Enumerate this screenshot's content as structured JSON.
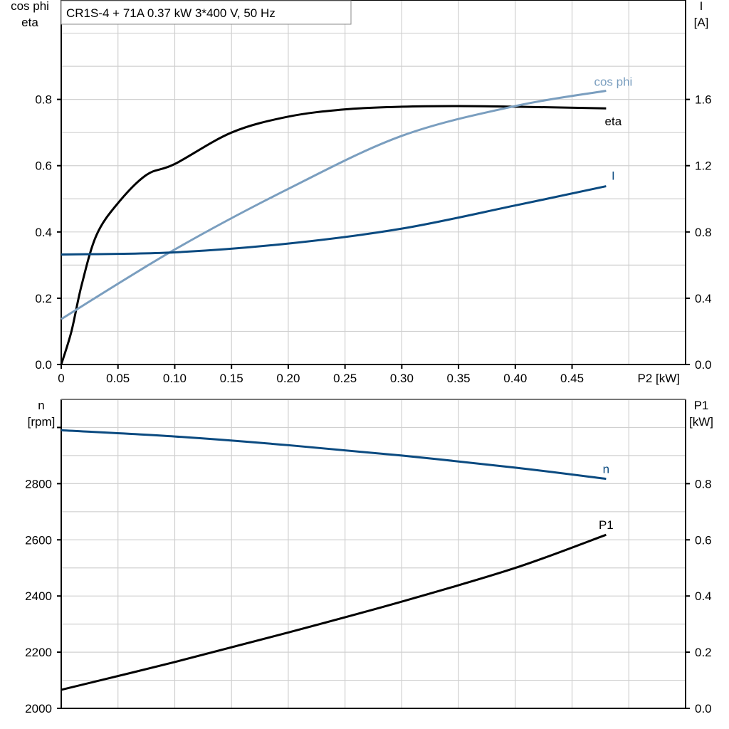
{
  "title": "CR1S-4 + 71A   0.37 kW   3*400 V, 50 Hz",
  "colors": {
    "eta": "#000000",
    "cos_phi": "#7a9ebf",
    "I": "#0a4a80",
    "n": "#0a4a80",
    "P1": "#000000",
    "grid": "#d0d0d0"
  },
  "chart_data": [
    {
      "type": "line",
      "xlabel": "P2 [kW]",
      "xlim": [
        0,
        0.55
      ],
      "xticks": [
        "0",
        "0.05",
        "0.10",
        "0.15",
        "0.20",
        "0.25",
        "0.30",
        "0.35",
        "0.40",
        "0.45"
      ],
      "ylabel_left": [
        "cos phi",
        "eta"
      ],
      "ylim_left": [
        0,
        1.1
      ],
      "yticks_left": [
        "0.0",
        "0.2",
        "0.4",
        "0.6",
        "0.8"
      ],
      "ylabel_right": [
        "I",
        "[A]"
      ],
      "ylim_right": [
        0,
        2.2
      ],
      "yticks_right": [
        "0.0",
        "0.4",
        "0.8",
        "1.2",
        "1.6"
      ],
      "grid": true,
      "series": [
        {
          "name": "eta",
          "axis": "left",
          "x": [
            0,
            0.009,
            0.018,
            0.031,
            0.05,
            0.075,
            0.1,
            0.15,
            0.2,
            0.25,
            0.3,
            0.35,
            0.4,
            0.48
          ],
          "y": [
            0,
            0.1,
            0.24,
            0.39,
            0.487,
            0.572,
            0.605,
            0.7,
            0.748,
            0.77,
            0.778,
            0.78,
            0.778,
            0.773
          ]
        },
        {
          "name": "cos phi",
          "axis": "left",
          "x": [
            0,
            0.1,
            0.2,
            0.3,
            0.4,
            0.48
          ],
          "y": [
            0.137,
            0.347,
            0.53,
            0.69,
            0.78,
            0.826
          ]
        },
        {
          "name": "I",
          "axis": "right",
          "x": [
            0,
            0.1,
            0.2,
            0.3,
            0.4,
            0.48
          ],
          "y": [
            0.664,
            0.677,
            0.73,
            0.82,
            0.96,
            1.076
          ]
        }
      ]
    },
    {
      "type": "line",
      "xlim": [
        0,
        0.55
      ],
      "ylabel_left": [
        "n",
        "[rpm]"
      ],
      "ylim_left": [
        2000,
        3100
      ],
      "yticks_left": [
        "2000",
        "2200",
        "2400",
        "2600",
        "2800"
      ],
      "ylabel_right": [
        "P1",
        "[kW]"
      ],
      "ylim_right": [
        0,
        1.1
      ],
      "yticks_right": [
        "0.0",
        "0.2",
        "0.4",
        "0.6",
        "0.8"
      ],
      "grid": true,
      "series": [
        {
          "name": "n",
          "axis": "left",
          "x": [
            0,
            0.1,
            0.2,
            0.3,
            0.4,
            0.48
          ],
          "y": [
            2990,
            2968,
            2937,
            2900,
            2857,
            2817
          ]
        },
        {
          "name": "P1",
          "axis": "right",
          "x": [
            0,
            0.1,
            0.2,
            0.3,
            0.4,
            0.48
          ],
          "y": [
            0.066,
            0.165,
            0.27,
            0.38,
            0.5,
            0.618
          ]
        }
      ]
    }
  ]
}
